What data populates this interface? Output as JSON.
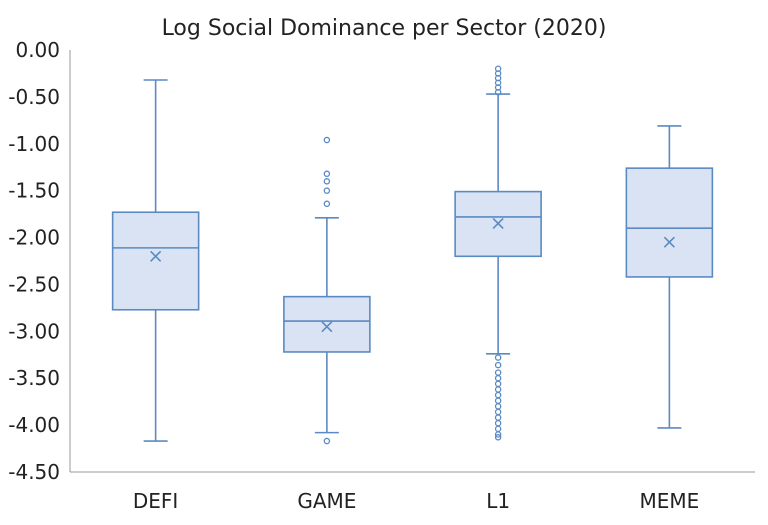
{
  "chart_data": {
    "type": "boxplot",
    "title": "Log Social Dominance per Sector (2020)",
    "xlabel": "",
    "ylabel": "",
    "ylim": [
      -4.5,
      0.0
    ],
    "yticks": [
      "0.00",
      "-0.50",
      "-1.00",
      "-1.50",
      "-2.00",
      "-2.50",
      "-3.00",
      "-3.50",
      "-4.00",
      "-4.50"
    ],
    "ytick_values": [
      0.0,
      -0.5,
      -1.0,
      -1.5,
      -2.0,
      -2.5,
      -3.0,
      -3.5,
      -4.0,
      -4.5
    ],
    "grid": false,
    "legend": "none",
    "colors": {
      "box_fill": "#dae3f3",
      "box_stroke": "#5b8ac2",
      "axis": "#999999"
    },
    "categories": [
      "DEFI",
      "GAME",
      "L1",
      "MEME"
    ],
    "boxes": [
      {
        "category": "DEFI",
        "whisker_low": -4.17,
        "q1": -2.77,
        "median": -2.11,
        "q3": -1.73,
        "whisker_high": -0.32,
        "mean": -2.2,
        "outliers": []
      },
      {
        "category": "GAME",
        "whisker_low": -4.08,
        "q1": -3.22,
        "median": -2.89,
        "q3": -2.63,
        "whisker_high": -1.79,
        "mean": -2.95,
        "outliers": [
          -4.17,
          -1.64,
          -1.5,
          -1.4,
          -1.32,
          -0.96
        ]
      },
      {
        "category": "L1",
        "whisker_low": -3.24,
        "q1": -2.2,
        "median": -1.78,
        "q3": -1.51,
        "whisker_high": -0.47,
        "mean": -1.85,
        "outliers": [
          -0.2,
          -0.25,
          -0.3,
          -0.35,
          -0.4,
          -0.45,
          -3.28,
          -3.36,
          -3.44,
          -3.5,
          -3.56,
          -3.62,
          -3.68,
          -3.74,
          -3.8,
          -3.86,
          -3.92,
          -3.98,
          -4.04,
          -4.1,
          -4.13
        ]
      },
      {
        "category": "MEME",
        "whisker_low": -4.03,
        "q1": -2.42,
        "median": -1.9,
        "q3": -1.26,
        "whisker_high": -0.81,
        "mean": -2.05,
        "outliers": []
      }
    ]
  }
}
